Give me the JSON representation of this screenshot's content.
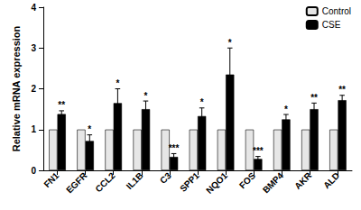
{
  "chart_data": {
    "type": "bar",
    "ylabel": "Relative mRNA expression",
    "categories": [
      "FN1",
      "EGFR",
      "CCL2",
      "IL1B",
      "C3",
      "SPP1",
      "NQO1",
      "FOS",
      "BMP4",
      "AKR",
      "ALD"
    ],
    "series": [
      {
        "name": "Control",
        "color": "#e6e6e6",
        "values": [
          1,
          1,
          1,
          1,
          1,
          1,
          1,
          1,
          1,
          1,
          1
        ]
      },
      {
        "name": "CSE",
        "color": "#000000",
        "values": [
          1.38,
          0.72,
          1.65,
          1.5,
          0.33,
          1.33,
          2.35,
          0.28,
          1.25,
          1.5,
          1.72
        ],
        "errors": [
          0.08,
          0.15,
          0.35,
          0.2,
          0.08,
          0.2,
          0.65,
          0.06,
          0.12,
          0.15,
          0.12
        ],
        "significance": [
          "**",
          "*",
          "*",
          "*",
          "***",
          "*",
          "*",
          "***",
          "*",
          "**",
          "**"
        ]
      }
    ],
    "ylim": [
      0,
      4
    ],
    "yticks": [
      0,
      1,
      2,
      3,
      4
    ],
    "grid": false,
    "legend": "upper right"
  }
}
